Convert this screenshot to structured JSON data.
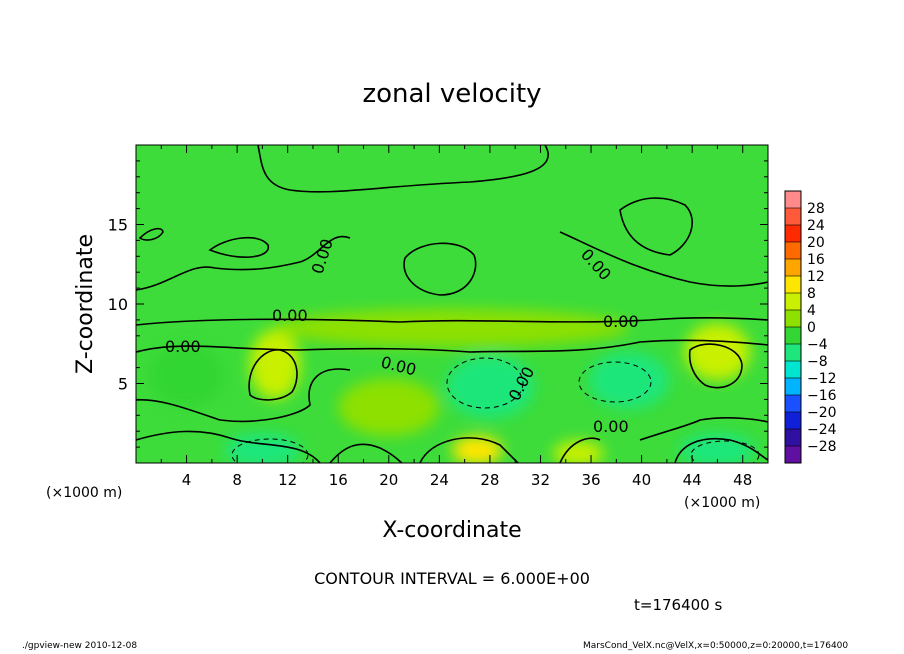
{
  "chart_data": {
    "type": "heatmap",
    "title": "zonal velocity",
    "xlabel": "X-coordinate",
    "ylabel": "Z-coordinate",
    "x_unit": "(×1000 m)",
    "x_unit_right": "(×1000 m)",
    "x_ticks": [
      4,
      8,
      12,
      16,
      20,
      24,
      28,
      32,
      36,
      40,
      44,
      48
    ],
    "y_ticks": [
      5,
      10,
      15
    ],
    "xlim": [
      0,
      50
    ],
    "ylim": [
      0,
      20
    ],
    "contour_label": "0.00",
    "contour_interval_text": "CONTOUR INTERVAL = 6.000E+00",
    "time_text": "t=176400 s",
    "colorbar": {
      "labels": [
        "28",
        "24",
        "20",
        "16",
        "12",
        "8",
        "4",
        "0",
        "−4",
        "−8",
        "−12",
        "−16",
        "−20",
        "−24",
        "−28"
      ],
      "levels": [
        28,
        24,
        20,
        16,
        12,
        8,
        4,
        0,
        -4,
        -8,
        -12,
        -16,
        -20,
        -24,
        -28
      ],
      "colors": [
        "#ff8a8a",
        "#ff5a3a",
        "#ff2a00",
        "#ff6a00",
        "#ffa500",
        "#ffe600",
        "#c8f000",
        "#8de000",
        "#33d633",
        "#1ee67a",
        "#00e5d0",
        "#00b4ff",
        "#1a50ff",
        "#1020d8",
        "#3010a0",
        "#6010a0"
      ]
    },
    "field_base_color": "#3ddc3a",
    "blobs": [
      {
        "x": 11,
        "z": 6.2,
        "rx": 2.0,
        "rz": 2.2,
        "value": 6
      },
      {
        "x": 46,
        "z": 7.0,
        "rx": 2.6,
        "rz": 1.8,
        "value": 6
      },
      {
        "x": 28,
        "z": 4.8,
        "rx": 3.5,
        "rz": 2.0,
        "value": -6
      },
      {
        "x": 39,
        "z": 5.2,
        "rx": 3.2,
        "rz": 1.8,
        "value": -5
      },
      {
        "x": 10,
        "z": 0.8,
        "rx": 3.0,
        "rz": 1.1,
        "value": -7
      },
      {
        "x": 46,
        "z": 0.8,
        "rx": 3.0,
        "rz": 1.1,
        "value": -6
      },
      {
        "x": 27,
        "z": 0.8,
        "rx": 2.0,
        "rz": 0.9,
        "value": 8
      },
      {
        "x": 35,
        "z": 0.6,
        "rx": 2.0,
        "rz": 0.8,
        "value": 5
      },
      {
        "x": 4,
        "z": 5.5,
        "rx": 3.0,
        "rz": 2.0,
        "value": -3
      },
      {
        "x": 20,
        "z": 3.5,
        "rx": 4.0,
        "rz": 1.8,
        "value": 3
      },
      {
        "x": 25,
        "z": 8.5,
        "rx": 14.0,
        "rz": 1.2,
        "value": 3
      }
    ]
  },
  "footer": {
    "left": "./gpview-new   2010-12-08",
    "right": "MarsCond_VelX.nc@VelX,x=0:50000,z=0:20000,t=176400"
  }
}
